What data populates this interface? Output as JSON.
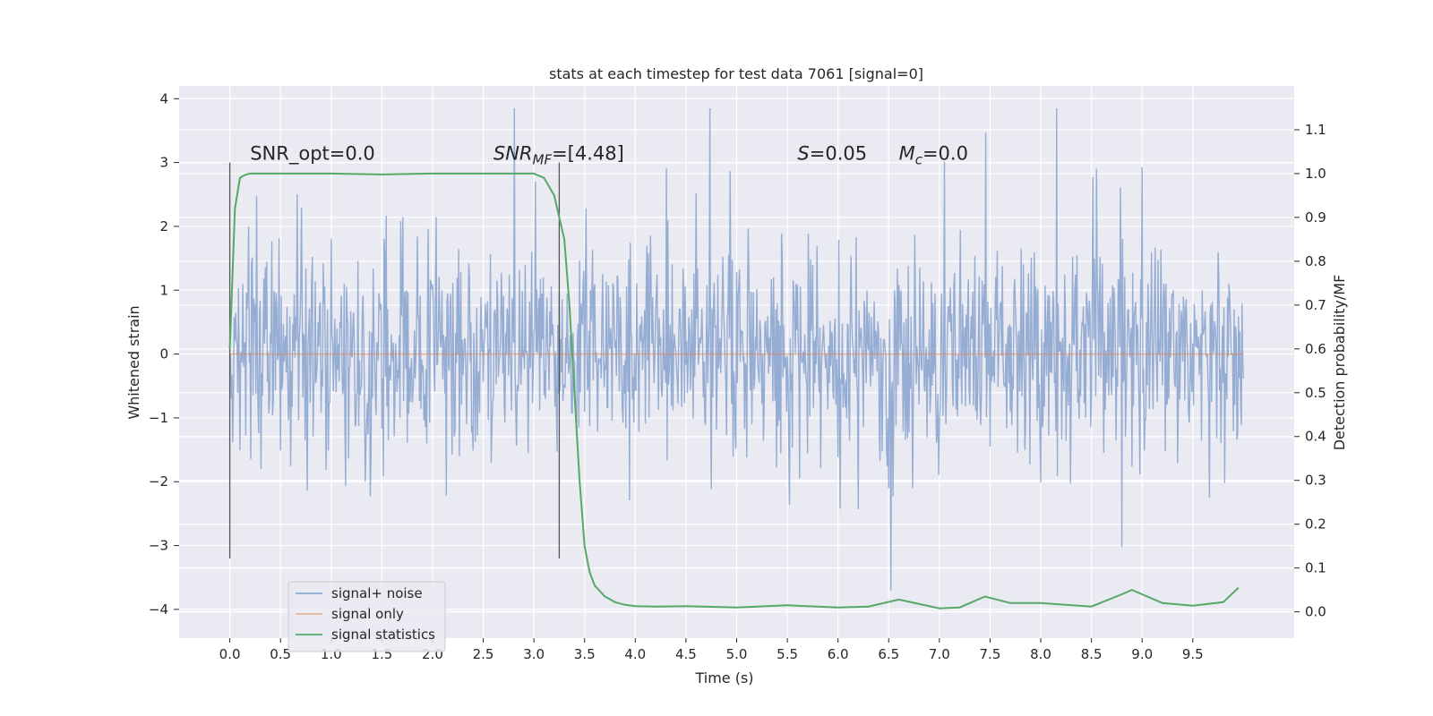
{
  "chart_data": {
    "type": "line",
    "title": "stats at each timestep for test data 7061 [signal=0]",
    "xlabel": "Time (s)",
    "ylabel": "Whitened strain",
    "ylabel_right": "Detection probability/MF",
    "xlim": [
      -0.5,
      10.5
    ],
    "ylim": [
      -4.45,
      4.2
    ],
    "ylim_right": [
      -0.06,
      1.2
    ],
    "x_ticks": [
      0.0,
      0.5,
      1.0,
      1.5,
      2.0,
      2.5,
      3.0,
      3.5,
      4.0,
      4.5,
      5.0,
      5.5,
      6.0,
      6.5,
      7.0,
      7.5,
      8.0,
      8.5,
      9.0,
      9.5
    ],
    "x_tick_labels": [
      "0.0",
      "0.5",
      "1.0",
      "1.5",
      "2.0",
      "2.5",
      "3.0",
      "3.5",
      "4.0",
      "4.5",
      "5.0",
      "5.5",
      "6.0",
      "6.5",
      "7.0",
      "7.5",
      "8.0",
      "8.5",
      "9.0",
      "9.5"
    ],
    "y_ticks": [
      4,
      3,
      2,
      1,
      0,
      -1,
      -2,
      -3,
      -4
    ],
    "y_tick_labels": [
      "4",
      "3",
      "2",
      "1",
      "0",
      "−1",
      "−2",
      "−3",
      "−4"
    ],
    "y_right_ticks": [
      1.1,
      1.0,
      0.9,
      0.8,
      0.7,
      0.6,
      0.5,
      0.4,
      0.3,
      0.2,
      0.1,
      0.0
    ],
    "y_right_tick_labels": [
      "1.1",
      "1.0",
      "0.9",
      "0.8",
      "0.7",
      "0.6",
      "0.5",
      "0.4",
      "0.3",
      "0.2",
      "0.1",
      "0.0"
    ],
    "grid": true,
    "legend_position": "lower-left",
    "legend": [
      "signal+ noise",
      "signal only",
      "signal statistics"
    ],
    "colors": {
      "noise": "#7f9ccb",
      "signal": "#dd8452",
      "stats": "#55a868",
      "vline": "#555555",
      "background": "#eaeaf2",
      "grid": "#ffffff"
    },
    "series": [
      {
        "name": "signal+ noise",
        "axis": "left",
        "x_range": [
          0.0,
          10.0
        ],
        "approx_range": [
          -3.7,
          3.85
        ],
        "note_values": "dense Gaussian-like noise, roughly symmetric about 0"
      },
      {
        "name": "signal only",
        "axis": "left",
        "x": [
          0.0,
          10.0
        ],
        "y": [
          0.0,
          0.0
        ]
      },
      {
        "name": "signal statistics",
        "axis": "right",
        "x": [
          0.0,
          0.05,
          0.1,
          0.15,
          0.2,
          0.3,
          0.5,
          1.0,
          1.5,
          2.0,
          2.5,
          3.0,
          3.1,
          3.2,
          3.3,
          3.35,
          3.4,
          3.45,
          3.5,
          3.55,
          3.6,
          3.7,
          3.8,
          3.9,
          4.0,
          4.2,
          4.5,
          5.0,
          5.5,
          6.0,
          6.3,
          6.6,
          7.0,
          7.2,
          7.45,
          7.7,
          8.0,
          8.5,
          8.8,
          8.9,
          9.0,
          9.2,
          9.5,
          9.8,
          9.95
        ],
        "y": [
          0.6,
          0.92,
          0.99,
          0.997,
          1.0,
          1.0,
          1.0,
          1.0,
          0.998,
          1.0,
          1.0,
          1.0,
          0.99,
          0.95,
          0.85,
          0.7,
          0.5,
          0.3,
          0.15,
          0.09,
          0.06,
          0.035,
          0.022,
          0.016,
          0.013,
          0.012,
          0.013,
          0.01,
          0.015,
          0.01,
          0.012,
          0.028,
          0.008,
          0.01,
          0.035,
          0.02,
          0.02,
          0.012,
          0.04,
          0.05,
          0.04,
          0.02,
          0.014,
          0.022,
          0.055
        ]
      }
    ],
    "vertical_lines": [
      {
        "x": 0.0,
        "ymin": -3.2,
        "ymax": 3.0
      },
      {
        "x": 3.25,
        "ymin": -3.2,
        "ymax": 3.0
      }
    ],
    "annotations": [
      {
        "text": "SNR_opt=0.0",
        "x": 0.2,
        "y": 3.0
      },
      {
        "text": "SNR",
        "sub": "MF",
        "tail": "=[4.48]",
        "x": 2.6,
        "y": 3.0
      },
      {
        "text": "S",
        "tail": "=0.05",
        "x": 5.6,
        "y": 3.0
      },
      {
        "text": "M",
        "sub": "c",
        "tail": "=0.0",
        "x": 6.6,
        "y": 3.0
      }
    ]
  }
}
